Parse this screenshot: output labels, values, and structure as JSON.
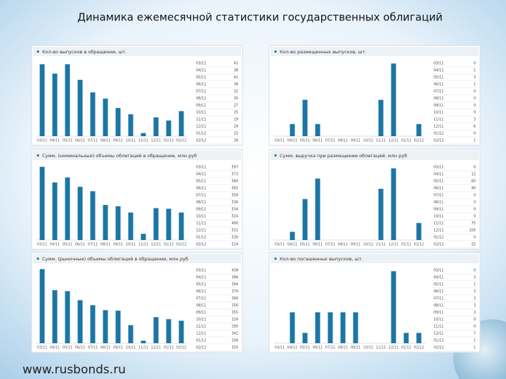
{
  "title": "Динамика ежемесячной статистики государственных облигаций",
  "footer": "www.rusbonds.ru",
  "chart_data": [
    {
      "type": "bar",
      "title": "Кол-во выпусков в обращении, шт.",
      "color": "#1b76a6",
      "categories": [
        "03/11",
        "04/11",
        "05/11",
        "06/11",
        "07/11",
        "08/11",
        "09/11",
        "10/11",
        "11/11",
        "12/11",
        "01/12",
        "02/12"
      ],
      "values": [
        41,
        38,
        41,
        36,
        32,
        30,
        27,
        25,
        19,
        24,
        23,
        26
      ],
      "ylim": [
        18,
        42
      ]
    },
    {
      "type": "bar",
      "title": "Кол-во размещенных выпусков, шт.",
      "color": "#1b76a6",
      "categories": [
        "03/11",
        "04/11",
        "05/11",
        "06/11",
        "07/11",
        "08/11",
        "09/11",
        "10/11",
        "11/11",
        "12/11",
        "01/12",
        "02/12"
      ],
      "values": [
        0,
        1,
        3,
        1,
        0,
        0,
        0,
        0,
        3,
        6,
        0,
        1
      ],
      "ylim": [
        0,
        6.2
      ]
    },
    {
      "type": "bar",
      "title": "Сумм. (номинальные) объемы облигаций в обращении, млн руб",
      "color": "#1b76a6",
      "categories": [
        "03/11",
        "04/11",
        "05/11",
        "06/11",
        "07/11",
        "08/11",
        "09/11",
        "10/11",
        "11/11",
        "12/11",
        "01/12",
        "02/12"
      ],
      "values": [
        597,
        572,
        580,
        565,
        558,
        536,
        534,
        524,
        490,
        531,
        530,
        524
      ],
      "ylim": [
        480,
        600
      ]
    },
    {
      "type": "bar",
      "title": "Сумм. выручка при размещении облигаций, млн руб",
      "color": "#1b76a6",
      "categories": [
        "03/11",
        "04/11",
        "05/11",
        "06/11",
        "07/11",
        "08/11",
        "09/11",
        "10/11",
        "11/11",
        "12/11",
        "01/12",
        "02/12"
      ],
      "values": [
        0,
        12,
        60,
        90,
        0,
        0,
        0,
        0,
        75,
        105,
        0,
        25
      ],
      "ylim": [
        0,
        110
      ]
    },
    {
      "type": "bar",
      "title": "Сумм. (рыночные) объемы облигаций в обращении, млн руб",
      "color": "#1b76a6",
      "categories": [
        "03/11",
        "04/11",
        "05/11",
        "06/11",
        "07/11",
        "08/11",
        "09/11",
        "10/11",
        "11/11",
        "12/11",
        "01/12",
        "02/12"
      ],
      "values": [
        438,
        396,
        394,
        376,
        366,
        356,
        355,
        326,
        295,
        342,
        338,
        335
      ],
      "ylim": [
        290,
        440
      ]
    },
    {
      "type": "bar",
      "title": "Кол-во погашенных выпусков, шт.",
      "color": "#1b76a6",
      "categories": [
        "03/11",
        "04/11",
        "05/11",
        "06/11",
        "07/11",
        "08/11",
        "09/11",
        "10/11",
        "11/11",
        "12/11",
        "01/12",
        "02/12"
      ],
      "values": [
        0,
        3,
        1,
        3,
        3,
        3,
        3,
        0,
        0,
        7,
        1,
        1
      ],
      "ylim": [
        0,
        7.3
      ]
    }
  ]
}
